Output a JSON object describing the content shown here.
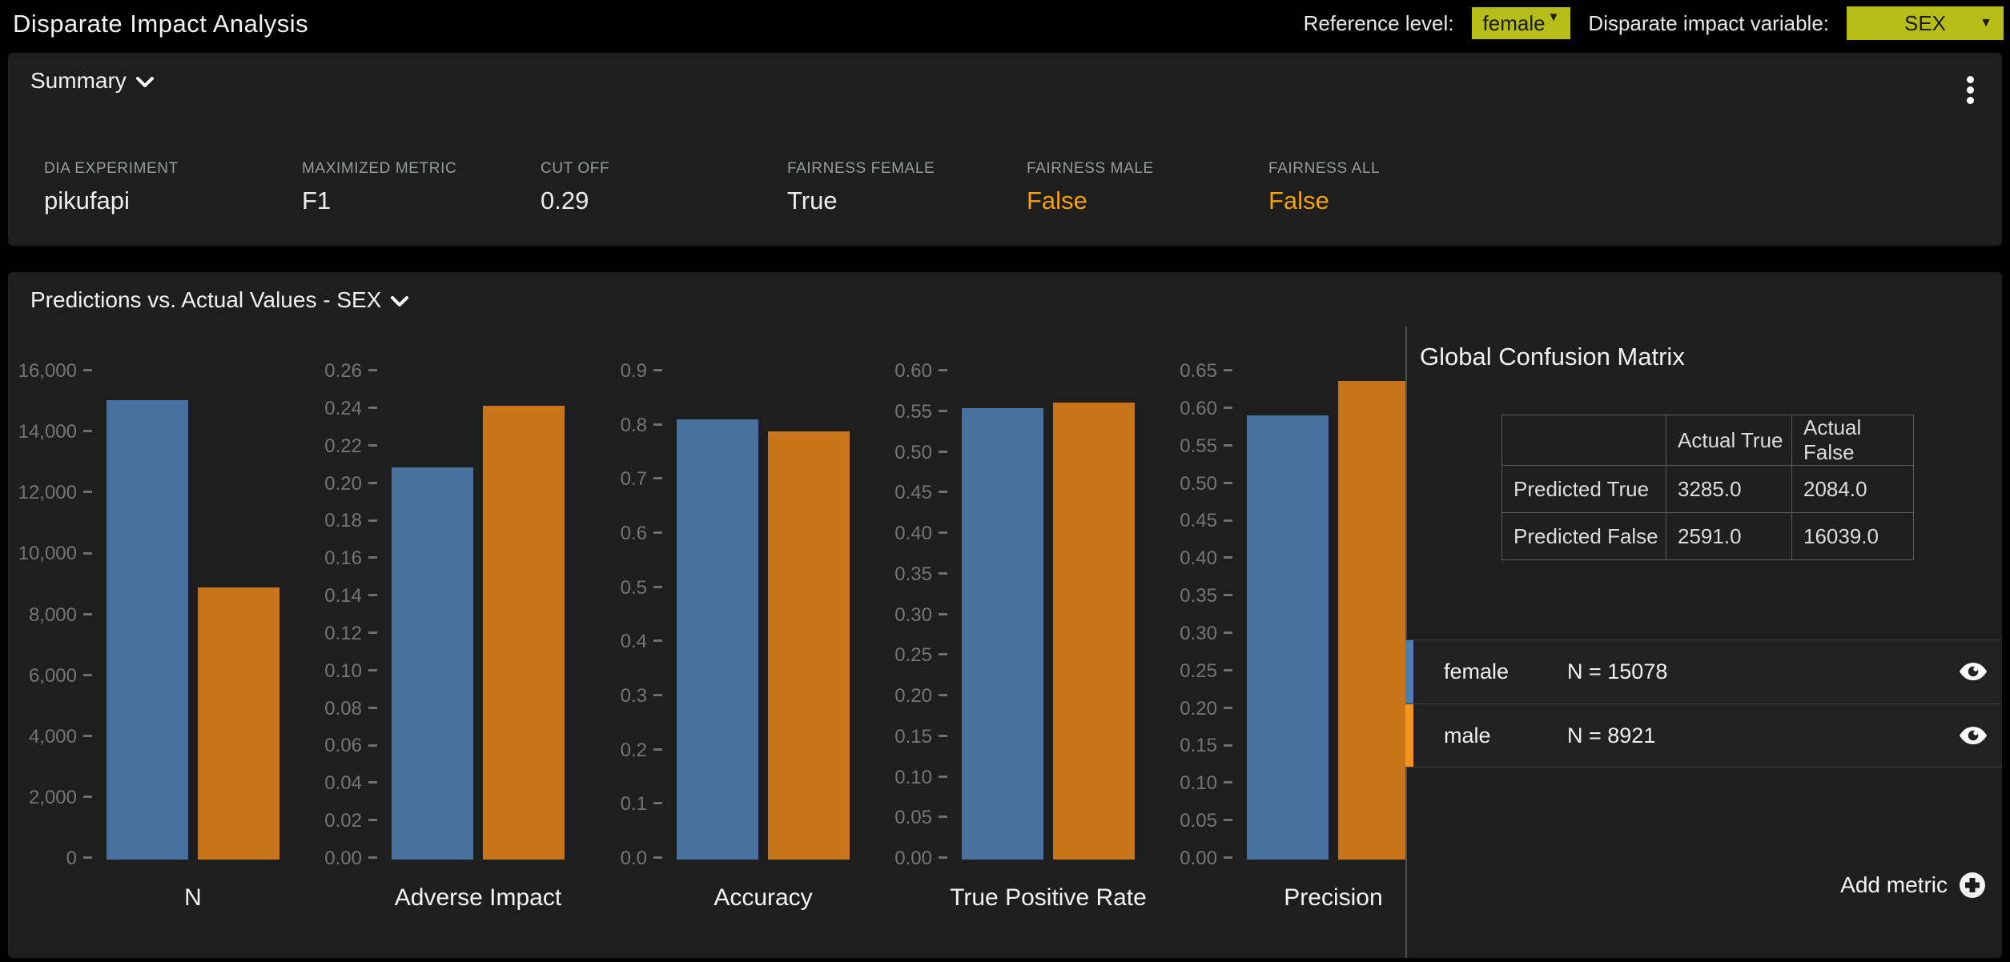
{
  "header": {
    "title": "Disparate Impact Analysis",
    "reference_label": "Reference level:",
    "reference_value": "female",
    "variable_label": "Disparate impact variable:",
    "variable_value": "SEX",
    "accent_color": "#b6bd16"
  },
  "summary": {
    "title": "Summary",
    "fields": [
      {
        "label": "DIA EXPERIMENT",
        "value": "pikufapi",
        "highlight": false
      },
      {
        "label": "MAXIMIZED METRIC",
        "value": "F1",
        "highlight": false
      },
      {
        "label": "CUT OFF",
        "value": "0.29",
        "highlight": false
      },
      {
        "label": "FAIRNESS FEMALE",
        "value": "True",
        "highlight": false
      },
      {
        "label": "FAIRNESS MALE",
        "value": "False",
        "highlight": true
      },
      {
        "label": "FAIRNESS ALL",
        "value": "False",
        "highlight": true
      }
    ]
  },
  "predictions_section": {
    "title": "Predictions vs. Actual Values - SEX"
  },
  "confusion_matrix": {
    "title": "Global Confusion Matrix",
    "col_headers": [
      "",
      "Actual True",
      "Actual False"
    ],
    "rows": [
      {
        "label": "Predicted True",
        "values": [
          "3285.0",
          "2084.0"
        ]
      },
      {
        "label": "Predicted False",
        "values": [
          "2591.0",
          "16039.0"
        ]
      }
    ]
  },
  "add_metric_label": "Add metric",
  "legend": [
    {
      "label": "female",
      "count_text": "N = 15078",
      "accent_color": "#4d7db3"
    },
    {
      "label": "male",
      "count_text": "N = 8921",
      "accent_color": "#f7941e"
    }
  ],
  "status_colors": {
    "warn_orange": "#f2a20a",
    "panel_bg": "#1e1e1e"
  },
  "chart_data": {
    "type": "bar",
    "series_categories": [
      "female",
      "male"
    ],
    "series_colors": [
      "#48719f",
      "#c87418"
    ],
    "grid": false,
    "legend_position": "right-panel",
    "charts": [
      {
        "title": "N",
        "values": [
          15078,
          8921
        ],
        "ymax": 16000,
        "tick_step": 2000,
        "decimals": 0,
        "thousands": true
      },
      {
        "title": "Adverse Impact",
        "values": [
          0.209,
          0.242
        ],
        "ymax": 0.26,
        "tick_step": 0.02,
        "decimals": 2,
        "thousands": false
      },
      {
        "title": "Accuracy",
        "values": [
          0.813,
          0.79
        ],
        "ymax": 0.9,
        "tick_step": 0.1,
        "decimals": 1,
        "thousands": false
      },
      {
        "title": "True Positive Rate",
        "values": [
          0.556,
          0.563
        ],
        "ymax": 0.6,
        "tick_step": 0.05,
        "decimals": 2,
        "thousands": false
      },
      {
        "title": "Precision",
        "values": [
          0.592,
          0.638
        ],
        "ymax": 0.65,
        "tick_step": 0.05,
        "decimals": 2,
        "thousands": false
      }
    ]
  }
}
